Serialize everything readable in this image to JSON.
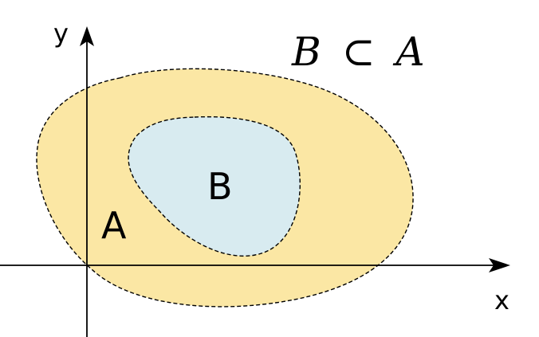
{
  "diagram": {
    "relation": {
      "left": "B",
      "symbol": "⊂",
      "right": "A"
    },
    "set_a": {
      "label": "A",
      "fill_color": "#fbe7a4"
    },
    "set_b": {
      "label": "B",
      "fill_color": "#d8ebf0"
    },
    "axes": {
      "x_label": "x",
      "y_label": "y",
      "color": "#000000"
    },
    "outline_color": "#000000",
    "outline_style": "dashed"
  }
}
